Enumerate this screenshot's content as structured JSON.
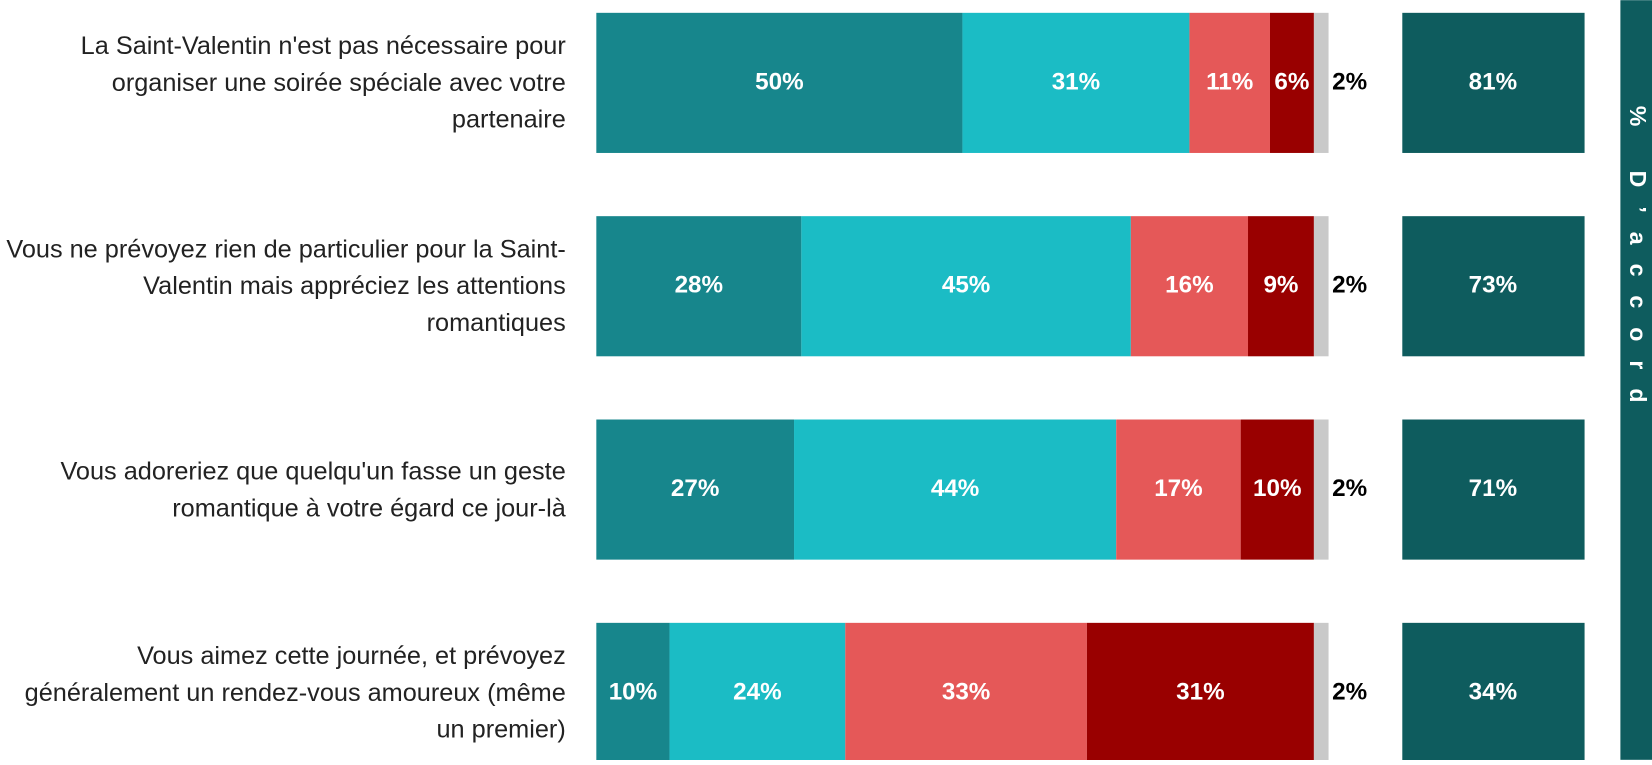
{
  "chart_data": {
    "type": "stacked-bar-horizontal",
    "categories": [
      "La Saint-Valentin n'est pas nécessaire pour organiser une soirée spéciale avec votre partenaire",
      "Vous ne prévoyez rien de particulier pour la Saint-Valentin mais appréciez les attentions romantiques",
      "Vous adoreriez que quelqu'un fasse un geste romantique à votre égard ce jour-là",
      "Vous aimez cette journée, et prévoyez généralement un rendez-vous amoureux (même un premier)"
    ],
    "series": [
      {
        "color": "#17868c",
        "values": [
          50,
          28,
          27,
          10
        ],
        "value_labels": [
          "50%",
          "28%",
          "27%",
          "10%"
        ]
      },
      {
        "color": "#1bbcc5",
        "values": [
          31,
          45,
          44,
          24
        ],
        "value_labels": [
          "31%",
          "45%",
          "44%",
          "24%"
        ]
      },
      {
        "color": "#e55858",
        "values": [
          11,
          16,
          17,
          33
        ],
        "value_labels": [
          "11%",
          "16%",
          "17%",
          "33%"
        ]
      },
      {
        "color": "#990000",
        "values": [
          6,
          9,
          10,
          31
        ],
        "value_labels": [
          "6%",
          "9%",
          "10%",
          "31%"
        ]
      },
      {
        "color": "#c9c9c9",
        "values": [
          2,
          2,
          2,
          2
        ],
        "value_labels": [
          "2%",
          "2%",
          "2%",
          "2%"
        ]
      }
    ],
    "xlim": [
      0,
      100
    ],
    "agree_title": "% D’accord",
    "agree_color": "#0e5c5e",
    "agree_values": [
      81,
      73,
      71,
      34
    ],
    "agree_value_labels": [
      "81%",
      "73%",
      "71%",
      "34%"
    ]
  }
}
